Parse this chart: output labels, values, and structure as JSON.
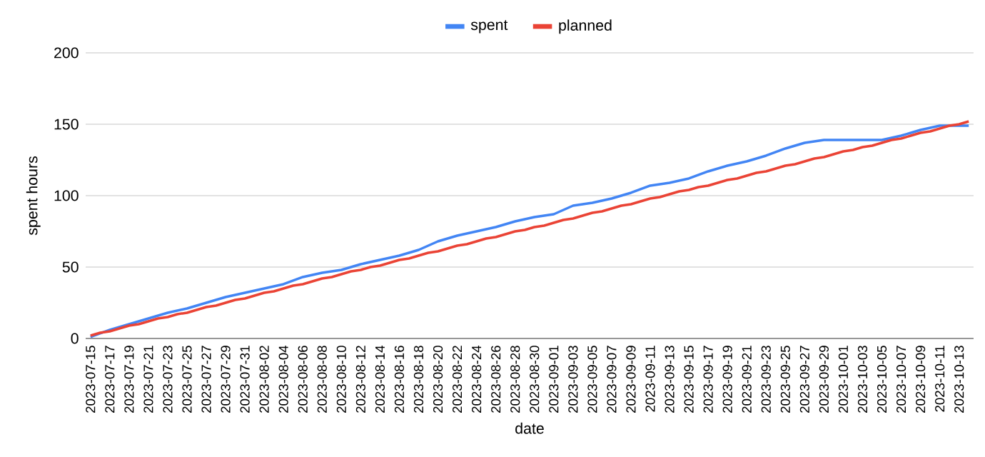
{
  "chart_data": {
    "type": "line",
    "categories": [
      "2023-07-15",
      null,
      "2023-07-17",
      null,
      "2023-07-19",
      null,
      "2023-07-21",
      null,
      "2023-07-23",
      null,
      "2023-07-25",
      null,
      "2023-07-27",
      null,
      "2023-07-29",
      null,
      "2023-07-31",
      null,
      "2023-08-02",
      null,
      "2023-08-04",
      null,
      "2023-08-06",
      null,
      "2023-08-08",
      null,
      "2023-08-10",
      null,
      "2023-08-12",
      null,
      "2023-08-14",
      null,
      "2023-08-16",
      null,
      "2023-08-18",
      null,
      "2023-08-20",
      null,
      "2023-08-22",
      null,
      "2023-08-24",
      null,
      "2023-08-26",
      null,
      "2023-08-28",
      null,
      "2023-08-30",
      null,
      "2023-09-01",
      null,
      "2023-09-03",
      null,
      "2023-09-05",
      null,
      "2023-09-07",
      null,
      "2023-09-09",
      null,
      "2023-09-11",
      null,
      "2023-09-13",
      null,
      "2023-09-15",
      null,
      "2023-09-17",
      null,
      "2023-09-19",
      null,
      "2023-09-21",
      null,
      "2023-09-23",
      null,
      "2023-09-25",
      null,
      "2023-09-27",
      null,
      "2023-09-29",
      null,
      "2023-10-01",
      null,
      "2023-10-03",
      null,
      "2023-10-05",
      null,
      "2023-10-07",
      null,
      "2023-10-09",
      null,
      "2023-10-11",
      null,
      "2023-10-13",
      null
    ],
    "series": [
      {
        "name": "spent",
        "color": "#4285f4",
        "values": [
          1,
          3.5,
          6,
          8,
          10,
          12,
          14,
          16,
          18,
          19.5,
          21,
          23,
          25,
          27,
          29,
          30.5,
          32,
          33.5,
          35,
          36.5,
          38,
          40.5,
          43,
          44.5,
          46,
          47,
          48,
          50,
          52,
          53.5,
          55,
          56.5,
          58,
          60,
          62,
          65,
          68,
          70,
          72,
          73.5,
          75,
          76.5,
          78,
          80,
          82,
          83.5,
          85,
          86,
          87,
          90,
          93,
          94,
          95,
          96.5,
          98,
          100,
          102,
          104.5,
          107,
          108,
          109,
          110.5,
          112,
          114.5,
          117,
          119,
          121,
          122.5,
          124,
          126,
          128,
          130.5,
          133,
          135,
          137,
          138,
          139,
          139,
          139,
          139,
          139,
          139,
          139,
          140.5,
          142,
          144,
          146,
          147.5,
          149,
          149,
          149,
          149
        ]
      },
      {
        "name": "planned",
        "color": "#ea4335",
        "values": [
          2,
          4,
          5,
          7,
          9,
          10,
          12,
          14,
          15,
          17,
          18,
          20,
          22,
          23,
          25,
          27,
          28,
          30,
          32,
          33,
          35,
          37,
          38,
          40,
          42,
          43,
          45,
          47,
          48,
          50,
          51,
          53,
          55,
          56,
          58,
          60,
          61,
          63,
          65,
          66,
          68,
          70,
          71,
          73,
          75,
          76,
          78,
          79,
          81,
          83,
          84,
          86,
          88,
          89,
          91,
          93,
          94,
          96,
          98,
          99,
          101,
          103,
          104,
          106,
          107,
          109,
          111,
          112,
          114,
          116,
          117,
          119,
          121,
          122,
          124,
          126,
          127,
          129,
          131,
          132,
          134,
          135,
          137,
          139,
          140,
          142,
          144,
          145,
          147,
          149,
          150,
          152
        ]
      }
    ],
    "xlabel": "date",
    "ylabel": "spent hours",
    "ylim": [
      0,
      200
    ],
    "yticks": [
      0,
      50,
      100,
      150,
      200
    ],
    "grid": "y",
    "legend": "top",
    "marker": "none",
    "line_style": "solid"
  }
}
